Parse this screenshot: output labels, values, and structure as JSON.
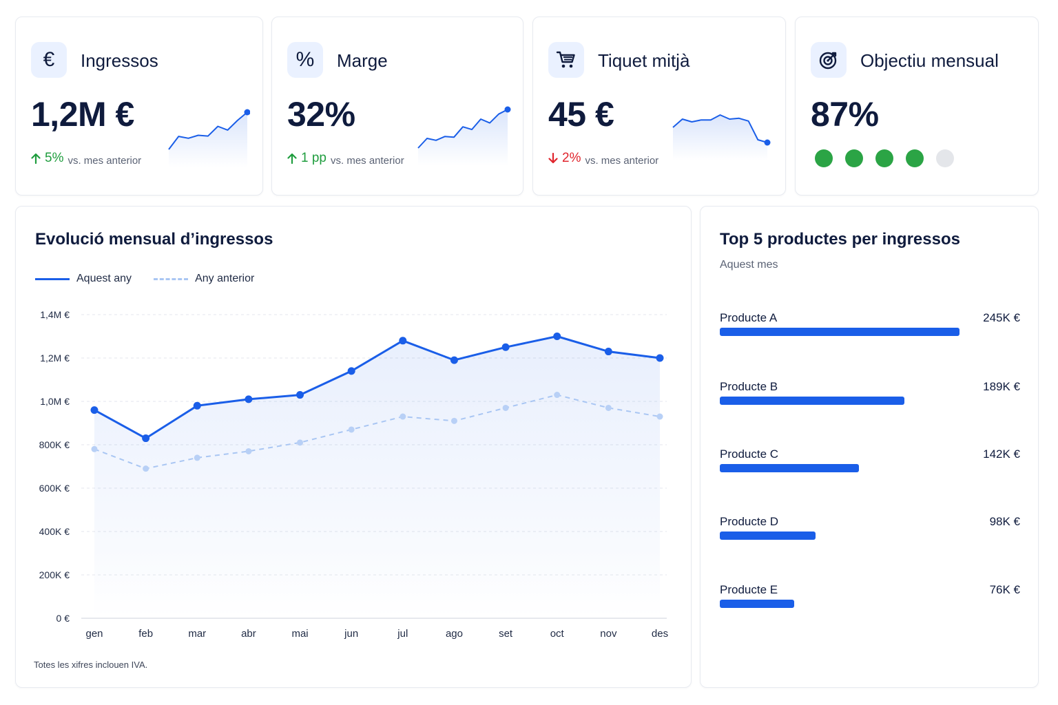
{
  "kpis": [
    {
      "title": "Ingressos",
      "value": "1,2M €",
      "delta": "5%",
      "delta_dir": "up",
      "comparison": "vs. mes anterior",
      "icon": "euro-icon"
    },
    {
      "title": "Marge",
      "value": "32%",
      "delta": "1 pp",
      "delta_dir": "up",
      "comparison": "vs. mes anterior",
      "icon": "percent-icon"
    },
    {
      "title": "Tiquet mitjà",
      "value": "45 €",
      "delta": "2%",
      "delta_dir": "down",
      "comparison": "vs. mes anterior",
      "icon": "cart-icon"
    },
    {
      "title": "Objectiu mensual",
      "value": "87%",
      "icon": "target-icon",
      "progress_dots_filled": 4,
      "progress_dots_total": 5
    }
  ],
  "revenue_panel": {
    "title": "Evolució mensual d’ingressos",
    "legend": [
      "Aquest any",
      "Any anterior"
    ],
    "footnote": "Totes les xifres inclouen IVA."
  },
  "products_panel": {
    "title": "Top 5 productes per ingressos",
    "subtitle": "Aquest mes",
    "items": [
      {
        "name": "Producte A",
        "value_label": "245K €",
        "value": 245
      },
      {
        "name": "Producte B",
        "value_label": "189K €",
        "value": 189
      },
      {
        "name": "Producte C",
        "value_label": "142K €",
        "value": 142
      },
      {
        "name": "Producte D",
        "value_label": "98K €",
        "value": 98
      },
      {
        "name": "Producte E",
        "value_label": "76K €",
        "value": 76
      }
    ]
  },
  "colors": {
    "primary": "#1a5ee8",
    "previous": "#a9c6f3",
    "positive": "#1f9d3e",
    "negative": "#e0242c",
    "goal": "#2ba445"
  },
  "chart_data": {
    "type": "line",
    "title": "Evolució mensual d’ingressos",
    "categories": [
      "gen",
      "feb",
      "mar",
      "abr",
      "mai",
      "jun",
      "jul",
      "ago",
      "set",
      "oct",
      "nov",
      "des"
    ],
    "series": [
      {
        "name": "Aquest any",
        "style": "solid-area",
        "values": [
          960000,
          830000,
          980000,
          1010000,
          1030000,
          1140000,
          1280000,
          1190000,
          1250000,
          1300000,
          1230000,
          1200000
        ]
      },
      {
        "name": "Any anterior",
        "style": "dashed",
        "values": [
          780000,
          690000,
          740000,
          770000,
          810000,
          870000,
          930000,
          910000,
          970000,
          1030000,
          970000,
          930000
        ]
      }
    ],
    "yticks": [
      "0 €",
      "200K €",
      "400K €",
      "600K €",
      "800K €",
      "1,0M €",
      "1,2M €",
      "1,4M €"
    ],
    "ylim": [
      0,
      1400000
    ],
    "grid": true,
    "legend": "top-left"
  },
  "sparklines": {
    "ingressos": [
      0.0,
      0.35,
      0.3,
      0.38,
      0.36,
      0.62,
      0.52,
      0.78,
      1.0
    ],
    "marge": [
      0.0,
      0.25,
      0.2,
      0.3,
      0.28,
      0.55,
      0.48,
      0.75,
      0.65,
      0.88,
      1.0
    ],
    "tiquet": [
      0.55,
      0.85,
      0.75,
      0.82,
      0.82,
      1.0,
      0.85,
      0.88,
      0.78,
      0.1,
      0.0
    ]
  }
}
